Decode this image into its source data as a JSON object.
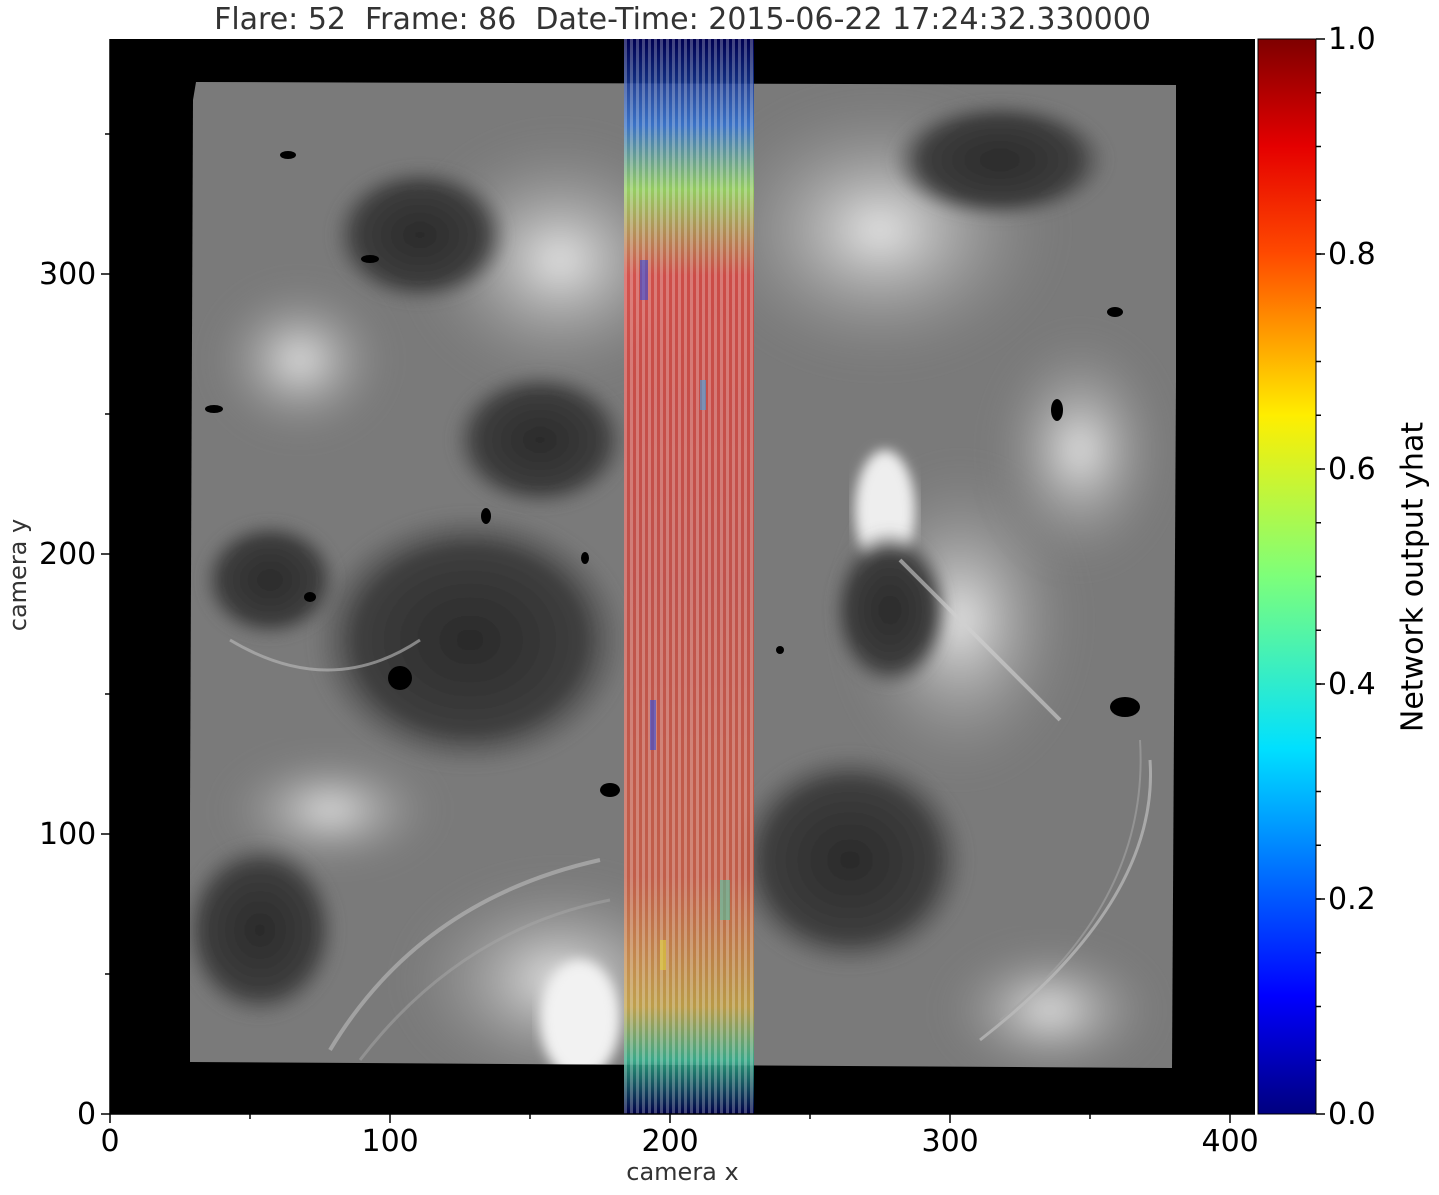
{
  "title": "Flare: 52  Frame: 86  Date-Time: 2015-06-22 17:24:32.330000",
  "image": {
    "description_icon": "solar-chromosphere-image",
    "xlabel": "camera x",
    "ylabel": "camera y",
    "x_range": [
      0,
      408
    ],
    "y_range": [
      0,
      385
    ],
    "x_ticks": [
      "0",
      "100",
      "200",
      "300",
      "400"
    ],
    "y_ticks": [
      "0",
      "100",
      "200",
      "300"
    ],
    "x_tick_values": [
      0,
      100,
      200,
      300,
      400
    ],
    "y_tick_values": [
      0,
      100,
      200,
      300
    ]
  },
  "colorbar": {
    "label": "Network output yhat",
    "colormap": "jet",
    "range": [
      0.0,
      1.0
    ],
    "ticks": [
      "0.0",
      "0.2",
      "0.4",
      "0.6",
      "0.8",
      "1.0"
    ],
    "tick_values": [
      0.0,
      0.2,
      0.4,
      0.6,
      0.8,
      1.0
    ]
  },
  "overlay": {
    "x_range": [
      184,
      230
    ],
    "y_range": [
      0,
      385
    ]
  },
  "colors": {
    "background": "#000000",
    "axis": "#000000"
  }
}
